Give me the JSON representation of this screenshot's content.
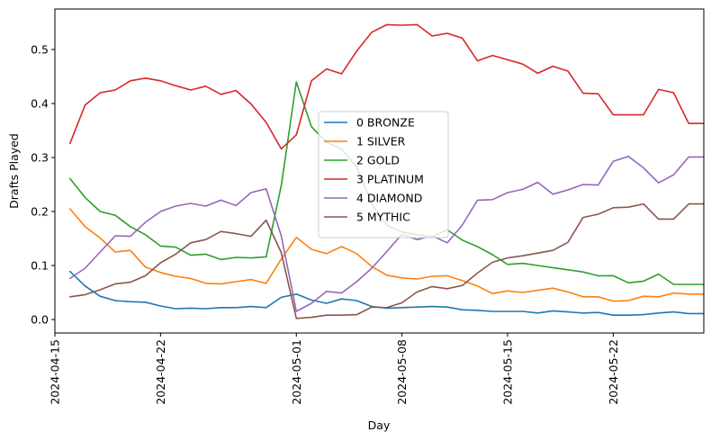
{
  "chart_data": {
    "type": "line",
    "xlabel": "Day",
    "ylabel": "Drafts Played",
    "x_type": "date",
    "xlim": [
      "2024-04-15",
      "2024-05-28"
    ],
    "ylim": [
      -0.025,
      0.575
    ],
    "x_ticks": [
      "2024-04-15",
      "2024-04-22",
      "2024-05-01",
      "2024-05-08",
      "2024-05-15",
      "2024-05-22"
    ],
    "y_ticks": [
      0.0,
      0.1,
      0.2,
      0.3,
      0.4,
      0.5
    ],
    "y_tick_labels": [
      "0.0",
      "0.1",
      "0.2",
      "0.3",
      "0.4",
      "0.5"
    ],
    "x_tick_rotation": 90,
    "grid": false,
    "legend_position": "center",
    "x": [
      "2024-04-16",
      "2024-04-17",
      "2024-04-18",
      "2024-04-19",
      "2024-04-20",
      "2024-04-21",
      "2024-04-22",
      "2024-04-23",
      "2024-04-24",
      "2024-04-25",
      "2024-04-26",
      "2024-04-27",
      "2024-04-28",
      "2024-04-29",
      "2024-04-30",
      "2024-05-01",
      "2024-05-02",
      "2024-05-03",
      "2024-05-04",
      "2024-05-05",
      "2024-05-06",
      "2024-05-07",
      "2024-05-08",
      "2024-05-09",
      "2024-05-10",
      "2024-05-11",
      "2024-05-12",
      "2024-05-13",
      "2024-05-14",
      "2024-05-15",
      "2024-05-16",
      "2024-05-17",
      "2024-05-18",
      "2024-05-19",
      "2024-05-20",
      "2024-05-21",
      "2024-05-22",
      "2024-05-23",
      "2024-05-24",
      "2024-05-25",
      "2024-05-26",
      "2024-05-27",
      "2024-05-28"
    ],
    "series": [
      {
        "name": "0 BRONZE",
        "color": "#1f77b4",
        "values": [
          0.089,
          0.062,
          0.043,
          0.035,
          0.033,
          0.032,
          0.025,
          0.02,
          0.021,
          0.02,
          0.022,
          0.022,
          0.024,
          0.022,
          0.041,
          0.047,
          0.036,
          0.03,
          0.038,
          0.035,
          0.024,
          0.021,
          0.022,
          0.023,
          0.024,
          0.023,
          0.018,
          0.017,
          0.015,
          0.015,
          0.015,
          0.012,
          0.016,
          0.014,
          0.012,
          0.013,
          0.008,
          0.008,
          0.009,
          0.012,
          0.014,
          0.011,
          0.011
        ]
      },
      {
        "name": "1 SILVER",
        "color": "#ff7f0e",
        "values": [
          0.205,
          0.172,
          0.151,
          0.125,
          0.128,
          0.097,
          0.087,
          0.08,
          0.076,
          0.067,
          0.066,
          0.07,
          0.074,
          0.067,
          0.112,
          0.152,
          0.13,
          0.122,
          0.135,
          0.122,
          0.098,
          0.082,
          0.077,
          0.075,
          0.08,
          0.081,
          0.072,
          0.062,
          0.048,
          0.053,
          0.05,
          0.054,
          0.058,
          0.051,
          0.042,
          0.042,
          0.034,
          0.035,
          0.043,
          0.042,
          0.049,
          0.047,
          0.047
        ]
      },
      {
        "name": "2 GOLD",
        "color": "#2ca02c",
        "values": [
          0.261,
          0.226,
          0.2,
          0.193,
          0.172,
          0.157,
          0.136,
          0.134,
          0.119,
          0.121,
          0.111,
          0.115,
          0.114,
          0.116,
          0.248,
          0.44,
          0.357,
          0.328,
          0.316,
          0.282,
          0.214,
          0.174,
          0.162,
          0.157,
          0.153,
          0.166,
          0.147,
          0.135,
          0.12,
          0.102,
          0.104,
          0.1,
          0.096,
          0.092,
          0.088,
          0.081,
          0.081,
          0.068,
          0.071,
          0.084,
          0.065,
          0.065,
          0.065
        ]
      },
      {
        "name": "3 PLATINUM",
        "color": "#d62728",
        "values": [
          0.326,
          0.397,
          0.42,
          0.425,
          0.442,
          0.447,
          0.442,
          0.433,
          0.425,
          0.432,
          0.417,
          0.424,
          0.399,
          0.365,
          0.316,
          0.342,
          0.442,
          0.464,
          0.455,
          0.497,
          0.532,
          0.546,
          0.545,
          0.546,
          0.525,
          0.53,
          0.521,
          0.479,
          0.489,
          0.481,
          0.473,
          0.456,
          0.469,
          0.46,
          0.419,
          0.418,
          0.379,
          0.379,
          0.379,
          0.426,
          0.42,
          0.363,
          0.363
        ]
      },
      {
        "name": "4 DIAMOND",
        "color": "#9467bd",
        "values": [
          0.076,
          0.095,
          0.125,
          0.155,
          0.154,
          0.18,
          0.2,
          0.21,
          0.215,
          0.21,
          0.221,
          0.211,
          0.235,
          0.242,
          0.155,
          0.015,
          0.03,
          0.052,
          0.049,
          0.07,
          0.095,
          0.126,
          0.158,
          0.148,
          0.155,
          0.142,
          0.175,
          0.221,
          0.222,
          0.235,
          0.241,
          0.254,
          0.232,
          0.24,
          0.25,
          0.249,
          0.293,
          0.302,
          0.281,
          0.253,
          0.268,
          0.301,
          0.301
        ]
      },
      {
        "name": "5 MYTHIC",
        "color": "#8c564b",
        "values": [
          0.042,
          0.046,
          0.055,
          0.066,
          0.069,
          0.081,
          0.105,
          0.121,
          0.142,
          0.148,
          0.163,
          0.159,
          0.154,
          0.184,
          0.124,
          0.002,
          0.004,
          0.008,
          0.008,
          0.009,
          0.023,
          0.022,
          0.031,
          0.051,
          0.061,
          0.057,
          0.063,
          0.086,
          0.106,
          0.114,
          0.118,
          0.123,
          0.128,
          0.143,
          0.189,
          0.195,
          0.207,
          0.208,
          0.214,
          0.186,
          0.186,
          0.214,
          0.214
        ]
      }
    ]
  }
}
